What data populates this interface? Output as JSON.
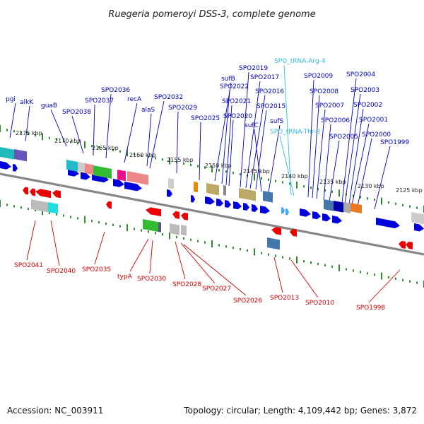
{
  "title": "Ruegeria pomeroyi DSS-3, complete genome",
  "footer": {
    "accession": "Accession: NC_003911",
    "topology": "Topology: circular; Length: 4,109,442 bp; Genes: 3,872"
  },
  "colors": {
    "forward_label": "#0000bb",
    "reverse_label": "#cc0000",
    "rna_label": "#33bbdd",
    "forward_cds": "#0000dd",
    "reverse_cds": "#ee0000",
    "tick": "#2a8a2a",
    "backbone": "#888888"
  },
  "ticks": [
    "2175 kbp",
    "2170 kbp",
    "2165 kbp",
    "2160 kbp",
    "2155 kbp",
    "2150 kbp",
    "2145 kbp",
    "2140 kbp",
    "2135 kbp",
    "2130 kbp",
    "2125 kbp"
  ],
  "labels_top": [
    "pgi",
    "alkK",
    "guaB",
    "SPO2038",
    "SPO2037",
    "SPO2036",
    "recA",
    "alaS",
    "SPO2032",
    "SPO2029",
    "SPO2025",
    "sufB",
    "SPO2022",
    "SPO2021",
    "SPO2020",
    "SPO2019",
    "SPO2017",
    "SPO2016",
    "SPO2015",
    "sufC",
    "sufS",
    "SPO_tRNA-Arg-4",
    "SPO_tRNA-Thr-3",
    "SPO2009",
    "SPO2008",
    "SPO2007",
    "SPO2006",
    "SPO2005",
    "SPO2004",
    "SPO2003",
    "SPO2002",
    "SPO2001",
    "SPO2000",
    "SPO1999"
  ],
  "labels_bottom": [
    "SPO2041",
    "SPO2040",
    "SPO2035",
    "typA",
    "SPO2030",
    "SPO2028",
    "SPO2027",
    "SPO2026",
    "SPO2013",
    "SPO2010",
    "SPO1998"
  ]
}
